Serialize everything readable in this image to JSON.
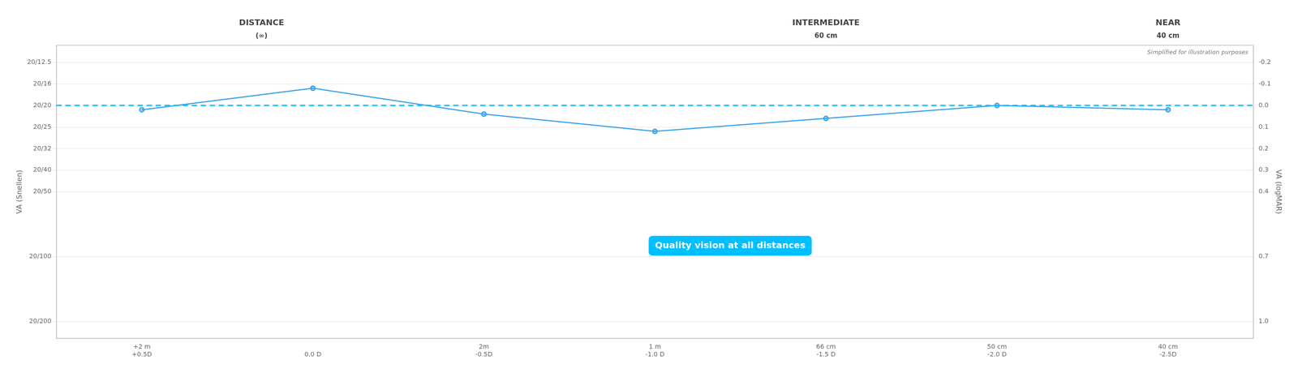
{
  "chart_data": {
    "type": "line",
    "x": [
      0.5,
      0.0,
      -0.5,
      -1.0,
      -1.5,
      -2.0,
      -2.5
    ],
    "values": [
      0.02,
      -0.08,
      0.04,
      0.12,
      0.06,
      0.0,
      0.02
    ],
    "marker": "circle",
    "xlim": [
      0.75,
      -2.75
    ],
    "xticks": [
      {
        "value": 0.5,
        "label": [
          "+2 m",
          "+0.5D"
        ]
      },
      {
        "value": 0.0,
        "label": [
          null,
          "0.0 D"
        ]
      },
      {
        "value": -0.5,
        "label": [
          "2m",
          "-0.5D"
        ]
      },
      {
        "value": -1.0,
        "label": [
          "1 m",
          "-1.0 D"
        ]
      },
      {
        "value": -1.5,
        "label": [
          "66 cm",
          "-1.5 D"
        ]
      },
      {
        "value": -2.0,
        "label": [
          "50 cm",
          "-2.0 D"
        ]
      },
      {
        "value": -2.5,
        "label": [
          "40 cm",
          "-2.5D"
        ]
      }
    ],
    "ylim": [
      1.08,
      -0.28
    ],
    "yticks": [
      {
        "value": -0.2,
        "label": "20/12.5"
      },
      {
        "value": -0.1,
        "label": "20/16"
      },
      {
        "value": 0.0,
        "label": "20/20"
      },
      {
        "value": 0.1,
        "label": "20/25"
      },
      {
        "value": 0.2,
        "label": "20/32"
      },
      {
        "value": 0.3,
        "label": "20/40"
      },
      {
        "value": 0.4,
        "label": "20/50"
      },
      {
        "value": 0.7,
        "label": "20/100"
      },
      {
        "value": 1.0,
        "label": "20/200"
      }
    ],
    "ylabel": "VA (Snellen)",
    "y2lim": [
      1.08,
      -0.28
    ],
    "y2ticks": [
      -0.2,
      -0.1,
      {
        "value": 0.0,
        "label": "0.0"
      },
      0.1,
      0.2,
      0.3,
      0.4,
      0.7,
      {
        "value": 1.0,
        "label": "1.0"
      }
    ],
    "y2label": "VA (logMAR)",
    "grid": "y",
    "headers": [
      {
        "text": "DISTANCE",
        "subtext": "(∞)",
        "x": 0.15
      },
      {
        "text": "INTERMEDIATE",
        "subtext": "60 cm",
        "x": -1.5
      },
      {
        "text": "NEAR",
        "subtext": "40 cm",
        "x": -2.5
      }
    ],
    "annotations": [
      {
        "text": "Simplified for illustration purposes"
      },
      {
        "text": "Quality vision at all distances",
        "x": -1.22,
        "y": 0.65,
        "color": "#00bfff"
      }
    ],
    "reference_line": {
      "y": 0.0,
      "color": "#00bfff",
      "line_style": "dashed"
    }
  }
}
